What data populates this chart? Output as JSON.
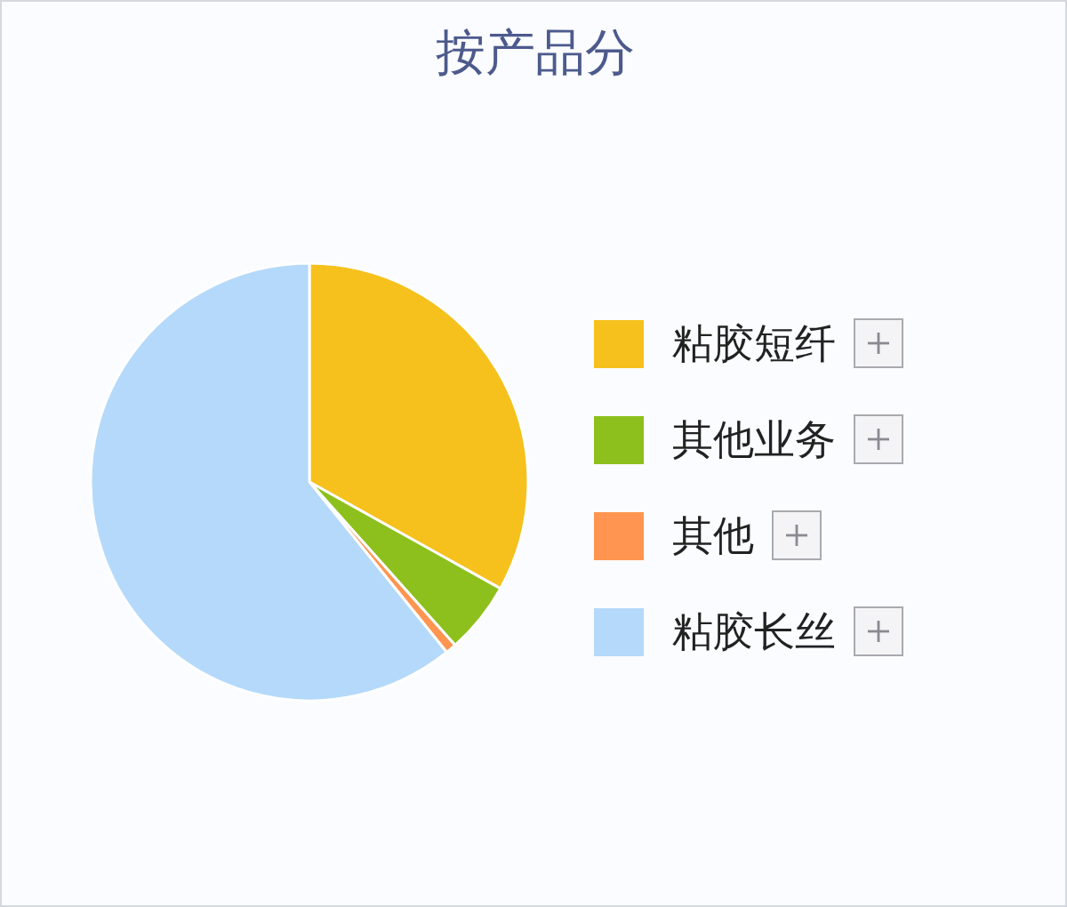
{
  "chart_data": {
    "type": "pie",
    "title": "按产品分",
    "categories": [
      "粘胶短纤",
      "其他业务",
      "其他",
      "粘胶长丝"
    ],
    "values": [
      33.1,
      5.3,
      0.8,
      60.8
    ],
    "colors": [
      "#f6c11c",
      "#8dc01c",
      "#ff9550",
      "#b4d9fa"
    ],
    "legend": "right"
  }
}
